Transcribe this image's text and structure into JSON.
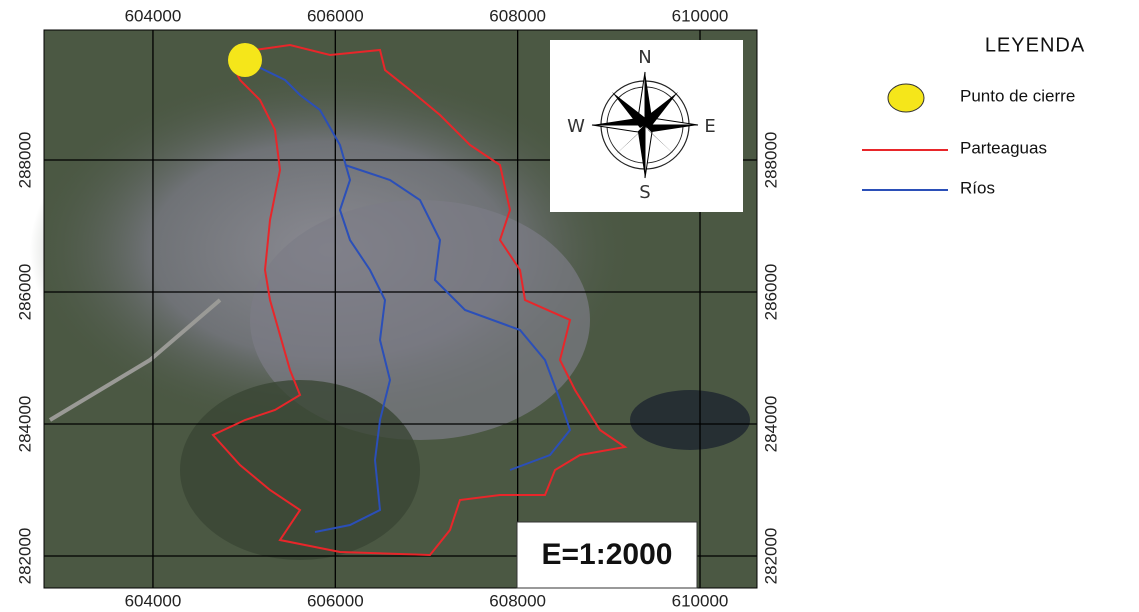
{
  "map": {
    "xlim": [
      602805,
      610625
    ],
    "ylim": [
      281515,
      289970
    ],
    "xticks": [
      604000,
      606000,
      608000,
      610000
    ],
    "yticks": [
      282000,
      284000,
      286000,
      288000
    ],
    "compass": {
      "north": "N",
      "south": "S",
      "east": "E",
      "west": "W"
    },
    "scale": "E=1:2000"
  },
  "legend": {
    "title": "LEYENDA",
    "items": [
      {
        "label": "Punto de cierre",
        "color": "#f5e61a"
      },
      {
        "label": "Parteaguas",
        "color": "#e8262a"
      },
      {
        "label": "Ríos",
        "color": "#2b4fb8"
      }
    ]
  }
}
